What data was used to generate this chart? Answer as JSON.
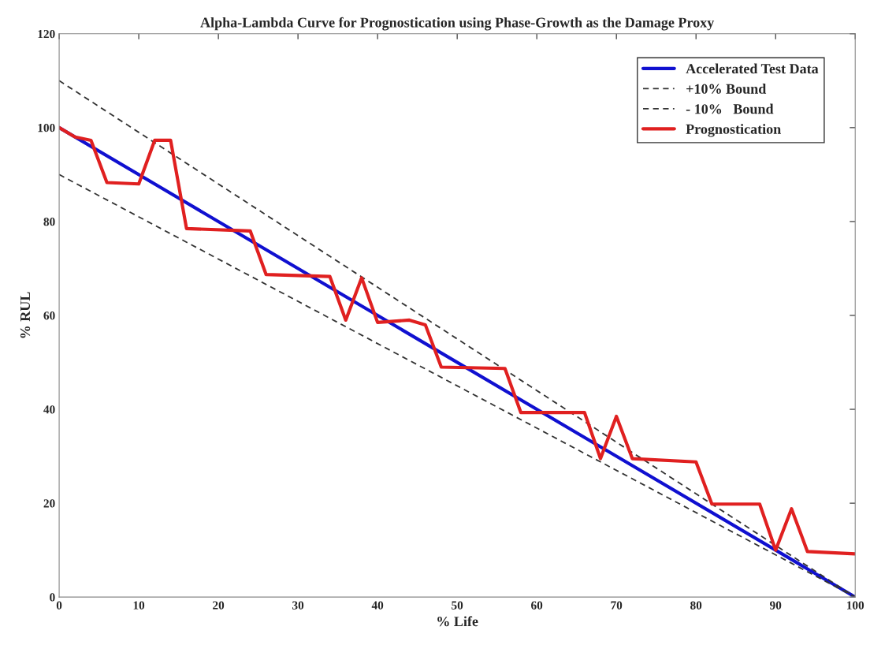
{
  "chart_data": {
    "type": "line",
    "title": "Alpha-Lambda Curve for Prognostication using Phase-Growth as the Damage Proxy",
    "xlabel": "% Life",
    "ylabel": "% RUL",
    "xlim": [
      0,
      100
    ],
    "ylim": [
      0,
      120
    ],
    "xticks": [
      0,
      10,
      20,
      30,
      40,
      50,
      60,
      70,
      80,
      90,
      100
    ],
    "yticks": [
      0,
      20,
      40,
      60,
      80,
      100,
      120
    ],
    "grid": false,
    "legend": "top right",
    "series": [
      {
        "name": "Accelerated Test Data",
        "color": "#1010d0",
        "line_style": "solid",
        "x": [
          0,
          100
        ],
        "values": [
          100,
          0
        ]
      },
      {
        "name": "+10% Bound",
        "color": "#333333",
        "line_style": "dashed",
        "x": [
          0,
          100
        ],
        "values": [
          110,
          0
        ]
      },
      {
        "name": "- 10%   Bound",
        "color": "#333333",
        "line_style": "dashed",
        "x": [
          0,
          100
        ],
        "values": [
          90,
          0
        ]
      },
      {
        "name": "Prognostication",
        "color": "#e02020",
        "line_style": "solid",
        "x": [
          0,
          2,
          4,
          6,
          10,
          12,
          14,
          16,
          24,
          26,
          34,
          36,
          38,
          40,
          44,
          46,
          48,
          56,
          58,
          66,
          68,
          70,
          72,
          80,
          82,
          88,
          90,
          92,
          94,
          100
        ],
        "values": [
          100,
          98,
          97.3,
          88.3,
          88,
          97.3,
          97.3,
          78.5,
          78,
          68.7,
          68.3,
          59,
          68,
          58.5,
          59,
          58,
          49,
          48.7,
          39.3,
          39.3,
          29.5,
          38.5,
          29.5,
          28.8,
          19.8,
          19.8,
          10,
          18.8,
          9.7,
          9.2
        ]
      }
    ]
  }
}
